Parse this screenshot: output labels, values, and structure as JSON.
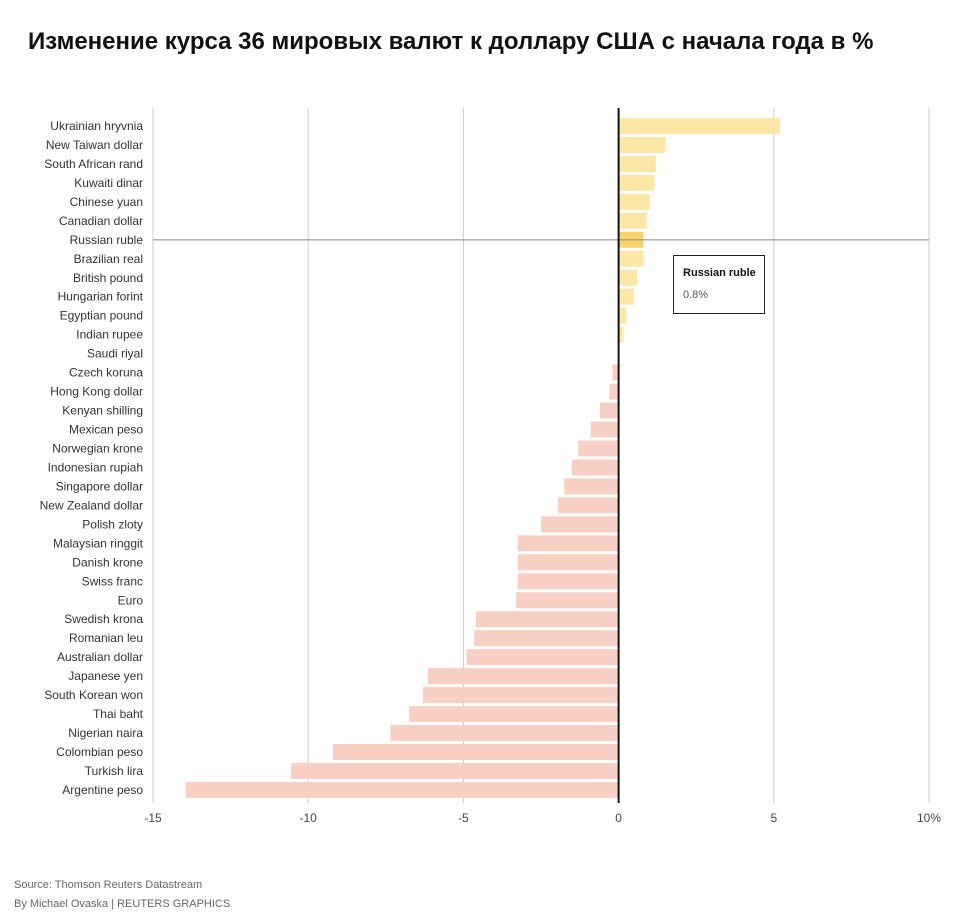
{
  "title": "Изменение курса 36 мировых валют к доллару США с начала года в %",
  "footer": {
    "source": "Source: Thomson Reuters Datastream",
    "credit": "By Michael Ovaska | REUTERS GRAPHICS"
  },
  "tooltip": {
    "name": "Russian ruble",
    "value": "0.8%"
  },
  "colors": {
    "positive": "#fde7a6",
    "negative": "#f8cfc3",
    "highlight": "#fbd46e",
    "grid": "#cccccc",
    "zero_line": "#111111"
  },
  "chart_data": {
    "type": "bar",
    "orientation": "horizontal",
    "highlight": "Russian ruble",
    "categories": [
      "Ukrainian hryvnia",
      "New Taiwan dollar",
      "South African rand",
      "Kuwaiti dinar",
      "Chinese yuan",
      "Canadian dollar",
      "Russian ruble",
      "Brazilian real",
      "British pound",
      "Hungarian forint",
      "Egyptian pound",
      "Indian rupee",
      "Saudi riyal",
      "Czech koruna",
      "Hong Kong dollar",
      "Kenyan shilling",
      "Mexican peso",
      "Norwegian krone",
      "Indonesian rupiah",
      "Singapore dollar",
      "New Zealand dollar",
      "Polish zloty",
      "Malaysian ringgit",
      "Danish krone",
      "Swiss franc",
      "Euro",
      "Swedish krona",
      "Romanian leu",
      "Australian dollar",
      "Japanese yen",
      "South Korean won",
      "Thai baht",
      "Nigerian naira",
      "Colombian peso",
      "Turkish lira",
      "Argentine peso"
    ],
    "values": [
      5.2,
      1.5,
      1.2,
      1.15,
      1.0,
      0.9,
      0.8,
      0.8,
      0.6,
      0.5,
      0.25,
      0.15,
      0.0,
      -0.2,
      -0.3,
      -0.6,
      -0.9,
      -1.3,
      -1.5,
      -1.75,
      -1.95,
      -2.5,
      -3.25,
      -3.25,
      -3.25,
      -3.3,
      -4.6,
      -4.65,
      -4.9,
      -6.15,
      -6.3,
      -6.75,
      -7.35,
      -9.2,
      -10.55,
      -13.95
    ],
    "xlim": [
      -15,
      10
    ],
    "xticks": [
      -15,
      -10,
      -5,
      0,
      5,
      10
    ],
    "xtick_labels": [
      "-15",
      "-10",
      "-5",
      "0",
      "5",
      "10%"
    ],
    "grid": true
  }
}
